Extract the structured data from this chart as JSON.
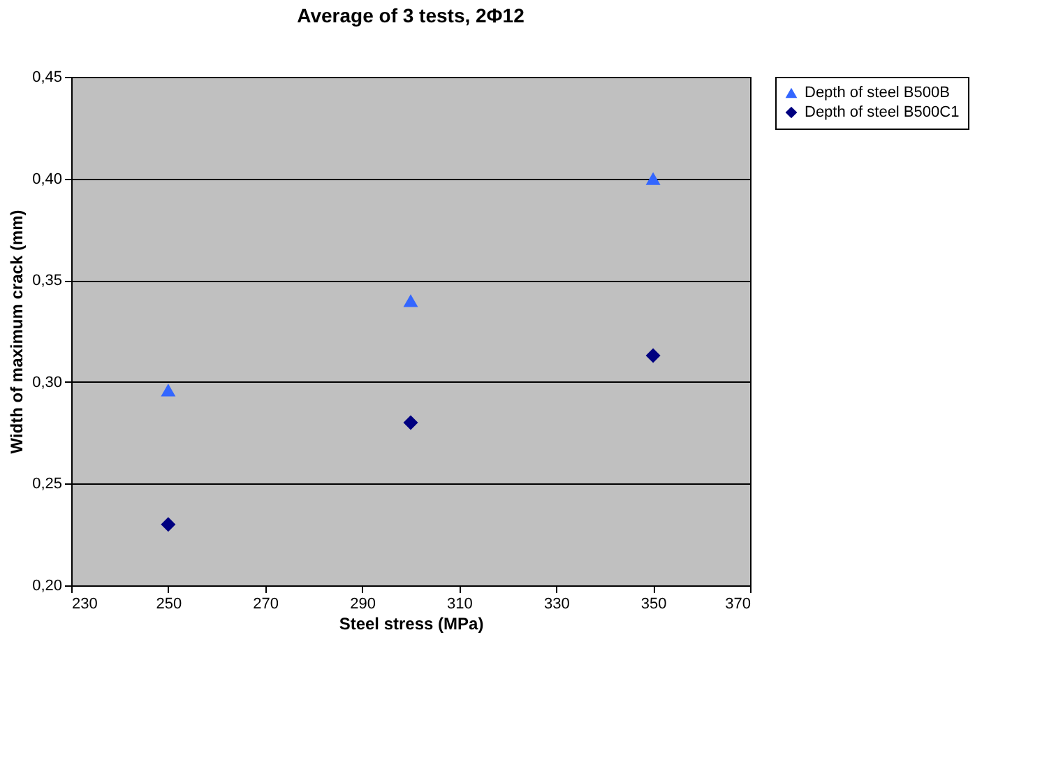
{
  "chart_data": {
    "type": "scatter",
    "title": "Average of 3 tests, 2Φ12",
    "xlabel": "Steel stress (MPa)",
    "ylabel": "Width of maximum crack (mm)",
    "series": [
      {
        "name": "Depth of steel B500B",
        "color": "#3366ff",
        "marker": "triangle",
        "x": [
          250,
          300,
          350
        ],
        "values": [
          0.296,
          0.34,
          0.4
        ]
      },
      {
        "name": "Depth of steel B500C1",
        "color": "#000080",
        "marker": "diamond",
        "x": [
          250,
          300,
          350
        ],
        "values": [
          0.23,
          0.28,
          0.313
        ]
      }
    ],
    "xlim": [
      230,
      370
    ],
    "xticks": [
      230,
      250,
      270,
      290,
      310,
      330,
      350,
      370
    ],
    "ylim": [
      0.2,
      0.45
    ],
    "yticks": [
      {
        "value": 0.2,
        "label": "0,20"
      },
      {
        "value": 0.25,
        "label": "0,25"
      },
      {
        "value": 0.3,
        "label": "0,30"
      },
      {
        "value": 0.35,
        "label": "0,35"
      },
      {
        "value": 0.4,
        "label": "0,40"
      },
      {
        "value": 0.45,
        "label": "0,45"
      }
    ],
    "grid": "y",
    "legend": "right"
  }
}
